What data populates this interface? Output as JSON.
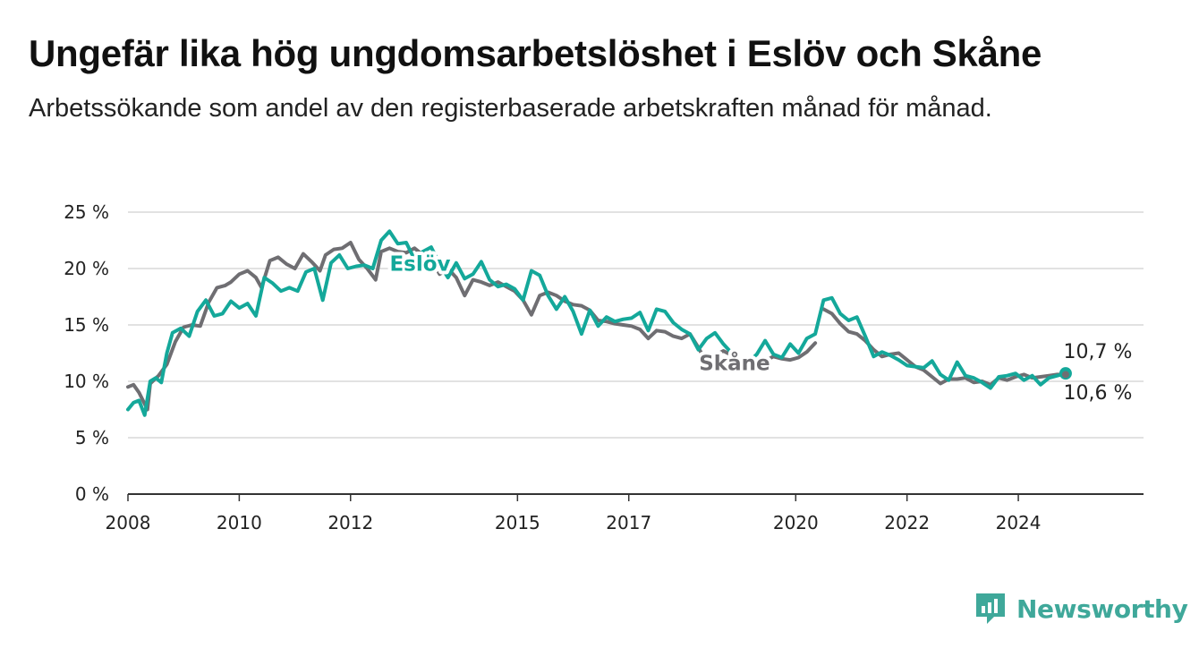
{
  "title": "Ungefär lika hög ungdomsarbetslöshet i Eslöv och Skåne",
  "subtitle": "Arbetssökande som andel av den registerbaserade arbetskraften månad för månad.",
  "brand": {
    "name": "Newsworthy"
  },
  "colors": {
    "eslov": "#14a89a",
    "skane": "#6f6e72",
    "grid": "#d9d9d9",
    "axis": "#333333"
  },
  "chart_data": {
    "type": "line",
    "ylim": [
      0,
      25
    ],
    "xlim": [
      2008,
      2026.25
    ],
    "y_ticks": [
      {
        "value": 0,
        "label": "0 %"
      },
      {
        "value": 5,
        "label": "5 %"
      },
      {
        "value": 10,
        "label": "10 %"
      },
      {
        "value": 15,
        "label": "15 %"
      },
      {
        "value": 20,
        "label": "20 %"
      },
      {
        "value": 25,
        "label": "25 %"
      }
    ],
    "x_ticks": [
      {
        "value": 2008,
        "label": "2008"
      },
      {
        "value": 2010,
        "label": "2010"
      },
      {
        "value": 2012,
        "label": "2012"
      },
      {
        "value": 2015,
        "label": "2015"
      },
      {
        "value": 2017,
        "label": "2017"
      },
      {
        "value": 2020,
        "label": "2020"
      },
      {
        "value": 2022,
        "label": "2022"
      },
      {
        "value": 2024,
        "label": "2024"
      }
    ],
    "grid": true,
    "series": [
      {
        "name": "Skåne",
        "end_label": "10,6 %",
        "label_at": [
          2018.9,
          11.0
        ],
        "x": [
          2008.0,
          2008.1,
          2008.2,
          2008.35,
          2008.4,
          2008.55,
          2008.7,
          2008.85,
          2009.0,
          2009.15,
          2009.3,
          2009.45,
          2009.6,
          2009.75,
          2009.85,
          2010.0,
          2010.15,
          2010.3,
          2010.4,
          2010.55,
          2010.7,
          2010.85,
          2011.0,
          2011.15,
          2011.3,
          2011.45,
          2011.55,
          2011.7,
          2011.85,
          2012.0,
          2012.15,
          2012.3,
          2012.45,
          2012.55,
          2012.7,
          2012.85,
          2013.0,
          2013.15,
          2013.3,
          2013.45,
          2013.6,
          2013.75,
          2013.9,
          2014.05,
          2014.2,
          2014.35,
          2014.5,
          2014.65,
          2014.8,
          2014.95,
          2015.1,
          2015.25,
          2015.4,
          2015.55,
          2015.7,
          2015.85,
          2016.0,
          2016.15,
          2016.3,
          2016.45,
          2016.6,
          2016.75,
          2016.9,
          2017.05,
          2017.2,
          2017.35,
          2017.5,
          2017.65,
          2017.8,
          2017.95,
          2018.1,
          2018.25,
          2018.4,
          2018.55,
          2018.7,
          2018.85,
          2019.0,
          2019.15,
          2019.3,
          2019.45,
          2019.6,
          2019.75,
          2019.9,
          2020.05,
          2020.2,
          2020.35,
          2020.5,
          2020.65,
          2020.8,
          2020.95,
          2021.1,
          2021.25,
          2021.4,
          2021.55,
          2021.7,
          2021.85,
          2022.0,
          2022.15,
          2022.3,
          2022.45,
          2022.6,
          2022.75,
          2022.9,
          2023.05,
          2023.2,
          2023.35,
          2023.5,
          2023.65,
          2023.8,
          2023.95,
          2024.1,
          2024.25,
          2024.4,
          2024.55,
          2024.7,
          2024.85
        ],
        "y": [
          9.5,
          9.7,
          9.0,
          7.5,
          9.8,
          10.5,
          11.5,
          13.5,
          14.8,
          15.0,
          14.9,
          17.0,
          18.3,
          18.5,
          18.8,
          19.5,
          19.8,
          19.2,
          18.3,
          20.7,
          21.0,
          20.4,
          20.0,
          21.3,
          20.6,
          19.8,
          21.2,
          21.7,
          21.8,
          22.3,
          20.8,
          20.0,
          19.0,
          21.5,
          21.8,
          21.5,
          21.4,
          21.8,
          21.2,
          20.8,
          19.5,
          20.0,
          19.2,
          17.6,
          19.0,
          18.8,
          18.5,
          18.8,
          18.4,
          18.0,
          17.2,
          15.9,
          17.6,
          17.9,
          17.6,
          17.1,
          16.8,
          16.7,
          16.3,
          15.4,
          15.3,
          15.1,
          15.0,
          14.9,
          14.6,
          13.8,
          14.5,
          14.4,
          14.0,
          13.8,
          14.2,
          13.0,
          11.6,
          12.3,
          12.7,
          12.3,
          12.0,
          11.6,
          11.4,
          11.8,
          12.2,
          12.0,
          11.9,
          12.1,
          12.6,
          13.4,
          16.4,
          16.0,
          15.1,
          14.4,
          14.2,
          13.6,
          12.8,
          12.2,
          12.4,
          12.5,
          11.9,
          11.3,
          11.0,
          10.4,
          9.8,
          10.2,
          10.2,
          10.3,
          9.9,
          10.0,
          9.7,
          10.3,
          10.1,
          10.4,
          10.6,
          10.3,
          10.4,
          10.5,
          10.6,
          10.6
        ],
        "gap_after_index": 85
      },
      {
        "name": "Eslöv",
        "end_label": "10,7 %",
        "label_at": [
          2013.25,
          19.8
        ],
        "x": [
          2008.0,
          2008.1,
          2008.2,
          2008.3,
          2008.4,
          2008.5,
          2008.6,
          2008.7,
          2008.8,
          2008.95,
          2009.1,
          2009.25,
          2009.4,
          2009.55,
          2009.7,
          2009.85,
          2010.0,
          2010.15,
          2010.3,
          2010.45,
          2010.6,
          2010.75,
          2010.9,
          2011.05,
          2011.2,
          2011.35,
          2011.5,
          2011.65,
          2011.8,
          2011.95,
          2012.1,
          2012.25,
          2012.4,
          2012.55,
          2012.7,
          2012.85,
          2013.0,
          2013.15,
          2013.3,
          2013.45,
          2013.6,
          2013.75,
          2013.9,
          2014.05,
          2014.2,
          2014.35,
          2014.5,
          2014.65,
          2014.8,
          2014.95,
          2015.1,
          2015.25,
          2015.4,
          2015.55,
          2015.7,
          2015.85,
          2016.0,
          2016.15,
          2016.3,
          2016.45,
          2016.6,
          2016.75,
          2016.9,
          2017.05,
          2017.2,
          2017.35,
          2017.5,
          2017.65,
          2017.8,
          2017.95,
          2018.1,
          2018.25,
          2018.4,
          2018.55,
          2018.7,
          2018.85,
          2019.0,
          2019.15,
          2019.3,
          2019.45,
          2019.6,
          2019.75,
          2019.9,
          2020.05,
          2020.2,
          2020.35,
          2020.5,
          2020.65,
          2020.8,
          2020.95,
          2021.1,
          2021.25,
          2021.4,
          2021.55,
          2021.7,
          2021.85,
          2022.0,
          2022.15,
          2022.3,
          2022.45,
          2022.6,
          2022.75,
          2022.9,
          2023.05,
          2023.2,
          2023.35,
          2023.5,
          2023.65,
          2023.8,
          2023.95,
          2024.1,
          2024.25,
          2024.4,
          2024.55,
          2024.7,
          2024.85
        ],
        "y": [
          7.5,
          8.1,
          8.3,
          7.0,
          10.0,
          10.3,
          9.9,
          12.5,
          14.3,
          14.7,
          14.0,
          16.2,
          17.2,
          15.8,
          16.0,
          17.1,
          16.5,
          16.9,
          15.8,
          19.2,
          18.7,
          18.0,
          18.3,
          18.0,
          19.7,
          20.0,
          17.2,
          20.5,
          21.2,
          20.0,
          20.2,
          20.3,
          20.0,
          22.5,
          23.3,
          22.2,
          22.3,
          20.8,
          21.5,
          21.9,
          20.4,
          19.2,
          20.5,
          19.1,
          19.5,
          20.6,
          19.0,
          18.4,
          18.6,
          18.2,
          17.2,
          19.8,
          19.4,
          17.6,
          16.4,
          17.5,
          16.2,
          14.2,
          16.3,
          14.9,
          15.7,
          15.3,
          15.5,
          15.6,
          16.1,
          14.5,
          16.4,
          16.2,
          15.2,
          14.6,
          14.2,
          12.8,
          13.8,
          14.3,
          13.3,
          12.5,
          12.0,
          11.7,
          12.4,
          13.6,
          12.4,
          12.1,
          13.3,
          12.5,
          13.8,
          14.2,
          17.2,
          17.4,
          16.0,
          15.4,
          15.7,
          14.0,
          12.2,
          12.6,
          12.3,
          11.9,
          11.4,
          11.3,
          11.2,
          11.8,
          10.6,
          10.1,
          11.7,
          10.5,
          10.3,
          9.9,
          9.4,
          10.4,
          10.5,
          10.7,
          10.1,
          10.5,
          9.7,
          10.3,
          10.5,
          10.7
        ],
        "gap_after_index": 75
      }
    ]
  }
}
